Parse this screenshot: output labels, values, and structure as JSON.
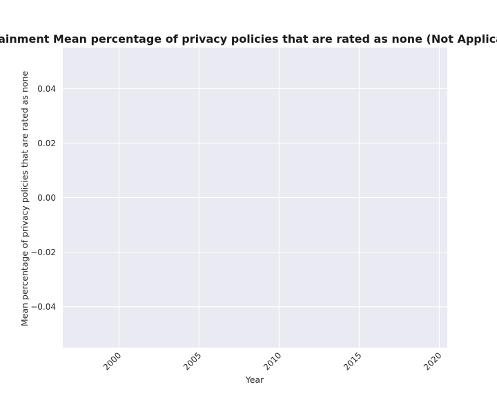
{
  "chart_data": {
    "type": "line",
    "title": ";entertainment Mean percentage of privacy policies that are rated as none (Not Applicable) in d",
    "xlabel": "Year",
    "ylabel": "Mean percentage of privacy policies that are rated as none",
    "xlim": [
      1996.5,
      2020.5
    ],
    "ylim": [
      -0.055,
      0.055
    ],
    "xticks": [
      2000,
      2005,
      2010,
      2015,
      2020
    ],
    "xtick_labels": [
      "2000",
      "2005",
      "2010",
      "2015",
      "2020"
    ],
    "yticks": [
      -0.04,
      -0.02,
      0.0,
      0.02,
      0.04
    ],
    "ytick_labels": [
      "−0.04",
      "−0.02",
      "0.00",
      "0.02",
      "0.04"
    ],
    "grid": true,
    "series": [],
    "colors": {
      "plot_background": "#eaeaf2",
      "grid": "#ffffff"
    }
  }
}
